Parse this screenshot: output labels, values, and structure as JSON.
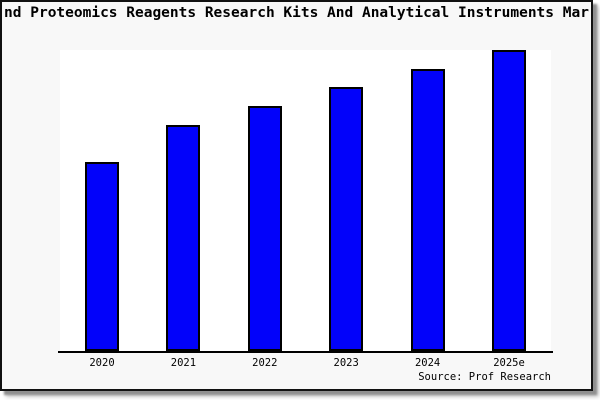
{
  "window": {
    "background_color": "#f8f8f8",
    "border_color": "#111111"
  },
  "chart_data": {
    "type": "bar",
    "title": "nd Proteomics Reagents Research Kits And Analytical Instruments Mar",
    "title_note": "title is clipped at both left and right edges of the figure",
    "categories": [
      "2020",
      "2021",
      "2022",
      "2023",
      "2024",
      "2025e"
    ],
    "values": [
      62.8,
      75.1,
      81.4,
      87.7,
      93.7,
      100
    ],
    "values_note": "no y-axis or value labels shown; bar heights estimated from pixels, normalized to 2025e = 100",
    "xlabel": "",
    "ylabel": "",
    "ylim": [
      0,
      100
    ],
    "grid": false,
    "legend": false,
    "bar_color": "#0202fa",
    "bar_edge_color": "#000000",
    "plot_background": "#ffffff",
    "source": "Source: Prof Research"
  }
}
